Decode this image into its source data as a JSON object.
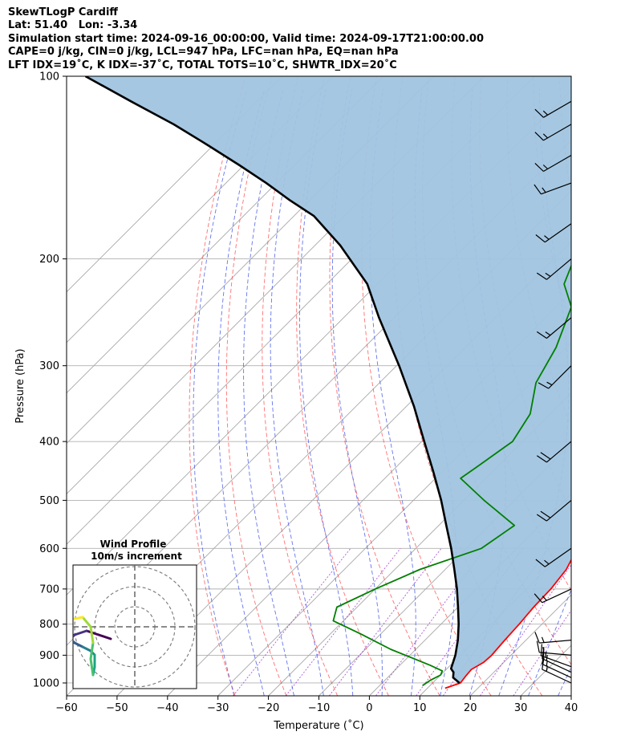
{
  "header": {
    "line1": "SkewTLogP Cardiff",
    "line2": "Lat: 51.40   Lon: -3.34",
    "line3": "Simulation start time: 2024-09-16_00:00:00, Valid time: 2024-09-17T21:00:00.00",
    "line4": "CAPE=0 j/kg, CIN=0 j/kg, LCL=947 hPa, LFC=nan hPa, EQ=nan hPa",
    "line5": "LFT IDX=19˚C, K IDX=-37˚C, TOTAL TOTS=10˚C, SHWTR_IDX=20˚C"
  },
  "chart_data": {
    "type": "line",
    "subtype": "skew-T log-P diagram",
    "xlabel": "Temperature (˚C)",
    "ylabel": "Pressure (hPa)",
    "xlim": [
      -60,
      40
    ],
    "ylim": [
      1050,
      100
    ],
    "y_scale": "log",
    "x_ticks": [
      "−60",
      "−50",
      "−40",
      "−30",
      "−20",
      "−10",
      "0",
      "10",
      "20",
      "30",
      "40"
    ],
    "y_ticks": [
      "100",
      "200",
      "300",
      "400",
      "500",
      "600",
      "700",
      "800",
      "900",
      "1000"
    ],
    "grid": true,
    "series": [
      {
        "role": "temperature",
        "color": "#ff0000",
        "points": [
          [
            13.5,
            1020
          ],
          [
            15.5,
            1000
          ],
          [
            15.2,
            975
          ],
          [
            15.0,
            950
          ],
          [
            16.0,
            925
          ],
          [
            16.2,
            900
          ],
          [
            15.8,
            850
          ],
          [
            15.5,
            800
          ],
          [
            15.0,
            750
          ],
          [
            14.8,
            700
          ],
          [
            14.0,
            650
          ],
          [
            12.0,
            600
          ],
          [
            9.0,
            550
          ],
          [
            5.5,
            500
          ],
          [
            0.5,
            450
          ],
          [
            -5.5,
            400
          ],
          [
            -12.0,
            350
          ],
          [
            -19.0,
            300
          ],
          [
            -26.0,
            250
          ],
          [
            -32.0,
            220
          ],
          [
            -38.5,
            190
          ],
          [
            -44.5,
            170
          ],
          [
            -52.0,
            155
          ],
          [
            -55.0,
            150
          ],
          [
            -59.0,
            140
          ],
          [
            -64.0,
            130
          ],
          [
            -68.0,
            120
          ],
          [
            -71.0,
            110
          ],
          [
            -74.0,
            100
          ]
        ]
      },
      {
        "role": "dewpoint",
        "color": "#008000",
        "points": [
          [
            8.5,
            1010
          ],
          [
            9.0,
            990
          ],
          [
            10.0,
            970
          ],
          [
            9.5,
            955
          ],
          [
            6.0,
            935
          ],
          [
            -5.0,
            880
          ],
          [
            -14.0,
            830
          ],
          [
            -22.0,
            790
          ],
          [
            -24.0,
            750
          ],
          [
            -20.0,
            700
          ],
          [
            -15.0,
            650
          ],
          [
            -7.0,
            600
          ],
          [
            -5.0,
            550
          ],
          [
            -16.0,
            500
          ],
          [
            -25.0,
            460
          ],
          [
            -24.0,
            440
          ],
          [
            -22.0,
            400
          ],
          [
            -24.0,
            360
          ],
          [
            -29.0,
            320
          ],
          [
            -32.0,
            280
          ],
          [
            -37.0,
            240
          ],
          [
            -43.0,
            220
          ],
          [
            -46.0,
            200
          ],
          [
            -50.0,
            185
          ],
          [
            -53.5,
            170
          ],
          [
            -56.5,
            160
          ],
          [
            -60.5,
            150
          ],
          [
            -64.0,
            140
          ],
          [
            -66.0,
            130
          ],
          [
            -71.5,
            120
          ],
          [
            -72.0,
            100
          ]
        ]
      },
      {
        "role": "parcel",
        "color": "#000000",
        "points": [
          [
            15.3,
            1000
          ],
          [
            13.0,
            980
          ],
          [
            12.0,
            960
          ],
          [
            10.8,
            947
          ],
          [
            9.0,
            900
          ],
          [
            6.5,
            850
          ],
          [
            3.5,
            800
          ],
          [
            0.0,
            750
          ],
          [
            -3.8,
            700
          ],
          [
            -8.2,
            650
          ],
          [
            -13.0,
            600
          ],
          [
            -18.5,
            550
          ],
          [
            -24.5,
            500
          ],
          [
            -31.5,
            450
          ],
          [
            -39.5,
            400
          ],
          [
            -48.5,
            350
          ],
          [
            -59.5,
            300
          ],
          [
            -73.0,
            250
          ],
          [
            -82.0,
            220
          ],
          [
            -95.0,
            190
          ],
          [
            -106.0,
            170
          ],
          [
            -114.0,
            160
          ],
          [
            -122.0,
            150
          ],
          [
            -131.0,
            140
          ],
          [
            -141.0,
            130
          ],
          [
            -152.0,
            120
          ],
          [
            -165.0,
            110
          ],
          [
            -179.0,
            100
          ]
        ]
      }
    ],
    "shaded_region": {
      "between": [
        "parcel",
        "temperature"
      ],
      "color": "#a0c4e0"
    },
    "wind_barbs": {
      "side": "right",
      "color": "#000000",
      "levels": [
        {
          "p": 1000,
          "spd": 15,
          "dir": 295
        },
        {
          "p": 980,
          "spd": 15,
          "dir": 295
        },
        {
          "p": 960,
          "spd": 15,
          "dir": 295
        },
        {
          "p": 940,
          "spd": 15,
          "dir": 290
        },
        {
          "p": 900,
          "spd": 15,
          "dir": 275
        },
        {
          "p": 850,
          "spd": 15,
          "dir": 265
        },
        {
          "p": 700,
          "spd": 15,
          "dir": 245
        },
        {
          "p": 600,
          "spd": 15,
          "dir": 235
        },
        {
          "p": 500,
          "spd": 20,
          "dir": 230
        },
        {
          "p": 400,
          "spd": 20,
          "dir": 230
        },
        {
          "p": 300,
          "spd": 15,
          "dir": 225
        },
        {
          "p": 250,
          "spd": 15,
          "dir": 230
        },
        {
          "p": 200,
          "spd": 15,
          "dir": 230
        },
        {
          "p": 175,
          "spd": 15,
          "dir": 235
        },
        {
          "p": 150,
          "spd": 15,
          "dir": 250
        },
        {
          "p": 135,
          "spd": 15,
          "dir": 240
        },
        {
          "p": 120,
          "spd": 15,
          "dir": 240
        },
        {
          "p": 110,
          "spd": 15,
          "dir": 240
        }
      ]
    },
    "inset": {
      "title_line1": "Wind Profile",
      "title_line2": "10m/s increment",
      "type": "hodograph",
      "rings": 3,
      "trace": [
        [
          -3.0,
          -1.5
        ],
        [
          -4.5,
          -1.0
        ],
        [
          -6.0,
          -0.5
        ],
        [
          -7.5,
          -1.0
        ],
        [
          -8.0,
          -1.5
        ],
        [
          -7.5,
          -2.0
        ],
        [
          -6.5,
          -2.5
        ],
        [
          -5.5,
          -3.0
        ],
        [
          -5.0,
          -3.5
        ],
        [
          -5.0,
          -5.0
        ],
        [
          -5.2,
          -6.0
        ],
        [
          -5.5,
          -4.0
        ],
        [
          -5.2,
          -2.0
        ],
        [
          -5.5,
          0.0
        ],
        [
          -6.5,
          1.2
        ],
        [
          -7.5,
          1.0
        ]
      ]
    }
  }
}
